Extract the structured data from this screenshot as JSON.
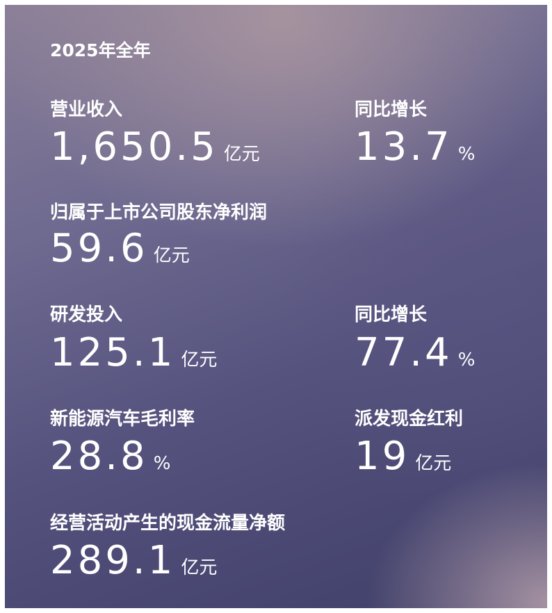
{
  "title": "2025年全年",
  "metrics": [
    {
      "label": "营业收入",
      "value": "1,650.5",
      "unit": "亿元"
    },
    {
      "label": "同比增长",
      "value": "13.7",
      "unit": "%"
    },
    {
      "label": "归属于上市公司股东净利润",
      "value": "59.6",
      "unit": "亿元"
    },
    {
      "label": "研发投入",
      "value": "125.1",
      "unit": "亿元"
    },
    {
      "label": "同比增长",
      "value": "77.4",
      "unit": "%"
    },
    {
      "label": "新能源汽车毛利率",
      "value": "28.8",
      "unit": "%"
    },
    {
      "label": "派发现金红利",
      "value": "19",
      "unit": "亿元"
    },
    {
      "label": "经营活动产生的现金流量净额",
      "value": "289.1",
      "unit": "亿元"
    }
  ]
}
